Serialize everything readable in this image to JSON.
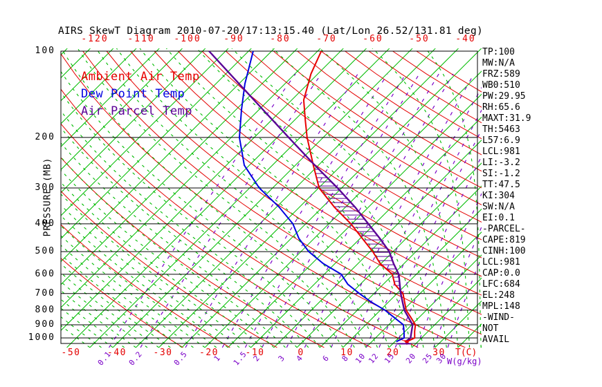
{
  "title": "AIRS SkewT Diagram 2010-07-20/17:13:15.40 (Lat/Lon 26.52/131.81 deg)",
  "legend": [
    {
      "label": "Ambient Air Temp",
      "color": "#e80000"
    },
    {
      "label": "Dew Point Temp",
      "color": "#0000e0"
    },
    {
      "label": "Air Parcel Temp",
      "color": "#5a0096"
    }
  ],
  "y_axis": {
    "label": "PRESSURE (MB)",
    "ticks": [
      100,
      200,
      300,
      400,
      500,
      600,
      700,
      800,
      900,
      1000
    ]
  },
  "x_axis_top": {
    "ticks": [
      "-120",
      "-110",
      "-100",
      "-90",
      "-80",
      "-70",
      "-60",
      "-50",
      "-40"
    ],
    "color": "#e40000"
  },
  "x_axis_bottom": {
    "temp_ticks": [
      -50,
      -40,
      -30,
      -20,
      -10,
      0,
      10,
      20,
      30
    ],
    "temp_unit_label": "T(C)",
    "mix_ticks": [
      "0.1",
      "0.2",
      "0.5",
      "1",
      "1.5",
      "2",
      "3",
      "4",
      "6",
      "8",
      "10",
      "12",
      "15",
      "20",
      "25",
      "30"
    ],
    "mix_unit_label": "W(g/kg)"
  },
  "stats_panel": [
    "TP:100",
    "MW:N/A",
    "FRZ:589",
    "WB0:510",
    "PW:29.95",
    "RH:65.6",
    "MAXT:31.9",
    "TH:5463",
    "L57:6.9",
    "LCL:981",
    "LI:-3.2",
    "SI:-1.2",
    "TT:47.5",
    "KI:304",
    "SW:N/A",
    "EI:0.1",
    "-PARCEL-",
    "CAPE:819",
    "CINH:100",
    "LCL:981",
    "CAP:0.0",
    "LFC:684",
    "EL:248",
    "MPL:148",
    "-WIND-",
    "NOT",
    "AVAIL"
  ],
  "chart_data": {
    "type": "line",
    "subtype": "skew-t log-p sounding",
    "pressure_axis": {
      "scale": "log",
      "range_mb": [
        100,
        1050
      ]
    },
    "temp_axis": {
      "unit": "C",
      "surface_labels": [
        -50,
        30
      ],
      "skew": "isotherms 45 deg up-right"
    },
    "series": [
      {
        "name": "Ambient Air Temp",
        "color": "#e80000",
        "points_p_T": [
          [
            100,
            -59.2
          ],
          [
            120,
            -56.5
          ],
          [
            148,
            -52.4
          ],
          [
            175,
            -47.5
          ],
          [
            200,
            -43.5
          ],
          [
            250,
            -36.1
          ],
          [
            300,
            -29.9
          ],
          [
            350,
            -22.4
          ],
          [
            400,
            -15.2
          ],
          [
            450,
            -9.5
          ],
          [
            500,
            -4.4
          ],
          [
            550,
            -0.2
          ],
          [
            600,
            4.8
          ],
          [
            650,
            7.5
          ],
          [
            700,
            11.3
          ],
          [
            800,
            15.6
          ],
          [
            850,
            18.3
          ],
          [
            900,
            20.8
          ],
          [
            950,
            22.1
          ],
          [
            1000,
            23.5
          ],
          [
            1030,
            22.6
          ]
        ]
      },
      {
        "name": "Dew Point Temp",
        "color": "#0000e0",
        "points_p_T": [
          [
            100,
            -74.0
          ],
          [
            130,
            -68.7
          ],
          [
            160,
            -63.8
          ],
          [
            200,
            -58.2
          ],
          [
            250,
            -51.1
          ],
          [
            300,
            -42.9
          ],
          [
            350,
            -34.4
          ],
          [
            400,
            -27.8
          ],
          [
            450,
            -23.3
          ],
          [
            500,
            -18.3
          ],
          [
            550,
            -12.6
          ],
          [
            600,
            -6.3
          ],
          [
            650,
            -2.7
          ],
          [
            700,
            1.8
          ],
          [
            750,
            6.3
          ],
          [
            800,
            11.0
          ],
          [
            850,
            14.7
          ],
          [
            900,
            18.2
          ],
          [
            950,
            19.8
          ],
          [
            1000,
            21.2
          ],
          [
            1030,
            20.3
          ]
        ]
      },
      {
        "name": "Air Parcel Temp",
        "color": "#5a0096",
        "points_p_T": [
          [
            100,
            -83.6
          ],
          [
            150,
            -62.5
          ],
          [
            200,
            -47.5
          ],
          [
            248,
            -36.2
          ],
          [
            300,
            -25.9
          ],
          [
            350,
            -17.9
          ],
          [
            400,
            -11.4
          ],
          [
            450,
            -5.7
          ],
          [
            500,
            -0.8
          ],
          [
            550,
            2.7
          ],
          [
            600,
            6.2
          ],
          [
            684,
            10.1
          ],
          [
            700,
            10.8
          ],
          [
            800,
            15.2
          ],
          [
            900,
            20.2
          ],
          [
            1000,
            22.6
          ],
          [
            1030,
            22.3
          ]
        ]
      }
    ],
    "cape_hatch": {
      "between": [
        "Air Parcel Temp",
        "Ambient Air Temp"
      ],
      "pressure_range_mb": [
        250,
        682
      ],
      "color": "#5a0096"
    },
    "grid": {
      "isotherms_C": {
        "min": -120,
        "max": 40,
        "step": 5,
        "color": "#00bb00",
        "style": "solid"
      },
      "dry_adiabats_thetaK": {
        "min": 243,
        "max": 453,
        "step": 10,
        "color": "#e40000",
        "style": "solid"
      },
      "mixing_ratio_gkg": {
        "values": [
          0.1,
          0.2,
          0.5,
          1,
          1.5,
          2,
          3,
          4,
          6,
          8,
          10,
          12,
          15,
          20,
          25,
          30
        ],
        "color": "#7a00c8",
        "style": "dashed"
      },
      "moist_adiabats_startC": {
        "min": -45,
        "max": 40,
        "step": 2.5,
        "color": "#00bb00",
        "style": "dashed"
      },
      "pressure_lines_mb": [
        100,
        200,
        300,
        400,
        500,
        600,
        700,
        800,
        900,
        1000
      ]
    }
  }
}
